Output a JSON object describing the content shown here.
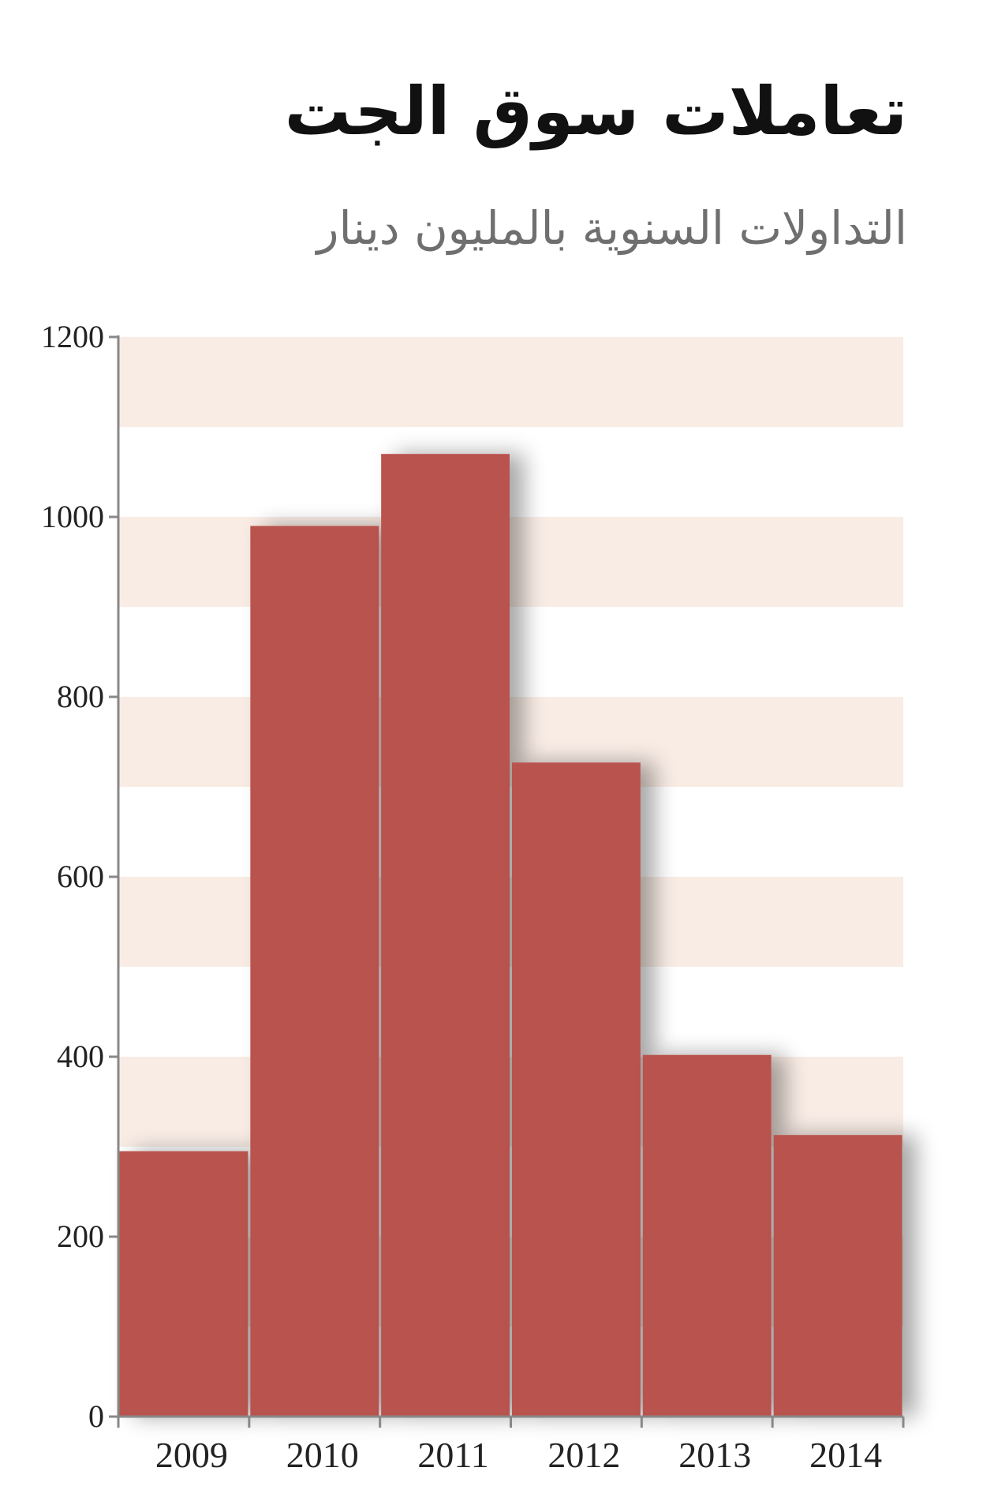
{
  "header": {
    "title": "تعاملات سوق الجت",
    "subtitle": "التداولات السنوية بالمليون دينار"
  },
  "colors": {
    "bar": "#B9534D",
    "band": "#F9ECE5",
    "axis": "#888888",
    "divider": "#E8D3CD"
  },
  "chart_data": {
    "type": "bar",
    "categories": [
      "2009",
      "2010",
      "2011",
      "2012",
      "2013",
      "2014"
    ],
    "values": [
      295,
      990,
      1070,
      727,
      402,
      313
    ],
    "ylim": [
      0,
      1200
    ],
    "yticks": [
      "0",
      "200",
      "400",
      "600",
      "800",
      "1000",
      "1200"
    ],
    "grid": "alternating horizontal bands",
    "legend": "none"
  }
}
